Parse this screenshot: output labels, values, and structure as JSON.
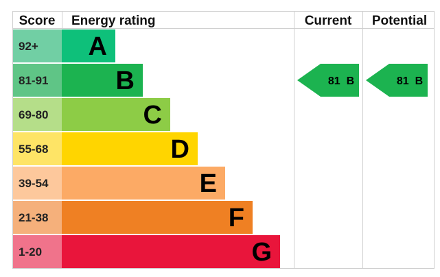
{
  "chart_data": {
    "type": "table",
    "headers": {
      "score": "Score",
      "rating": "Energy rating",
      "current": "Current",
      "potential": "Potential"
    },
    "bands": [
      {
        "score": "92+",
        "letter": "A",
        "color": "#0ec07a",
        "score_bg": "#71cfa4"
      },
      {
        "score": "81-91",
        "letter": "B",
        "color": "#1cb350",
        "score_bg": "#5fc586"
      },
      {
        "score": "69-80",
        "letter": "C",
        "color": "#8dcc46",
        "score_bg": "#b5de89"
      },
      {
        "score": "55-68",
        "letter": "D",
        "color": "#ffd500",
        "score_bg": "#fee466"
      },
      {
        "score": "39-54",
        "letter": "E",
        "color": "#fcaa65",
        "score_bg": "#fdc89c"
      },
      {
        "score": "21-38",
        "letter": "F",
        "color": "#ef8023",
        "score_bg": "#f5b07b"
      },
      {
        "score": "1-20",
        "letter": "G",
        "color": "#e9153b",
        "score_bg": "#f0738b"
      }
    ],
    "current": {
      "value": 81,
      "band": "B",
      "label": "81  B",
      "color": "#1cb350"
    },
    "potential": {
      "value": 81,
      "band": "B",
      "label": "81  B",
      "color": "#1cb350"
    }
  }
}
